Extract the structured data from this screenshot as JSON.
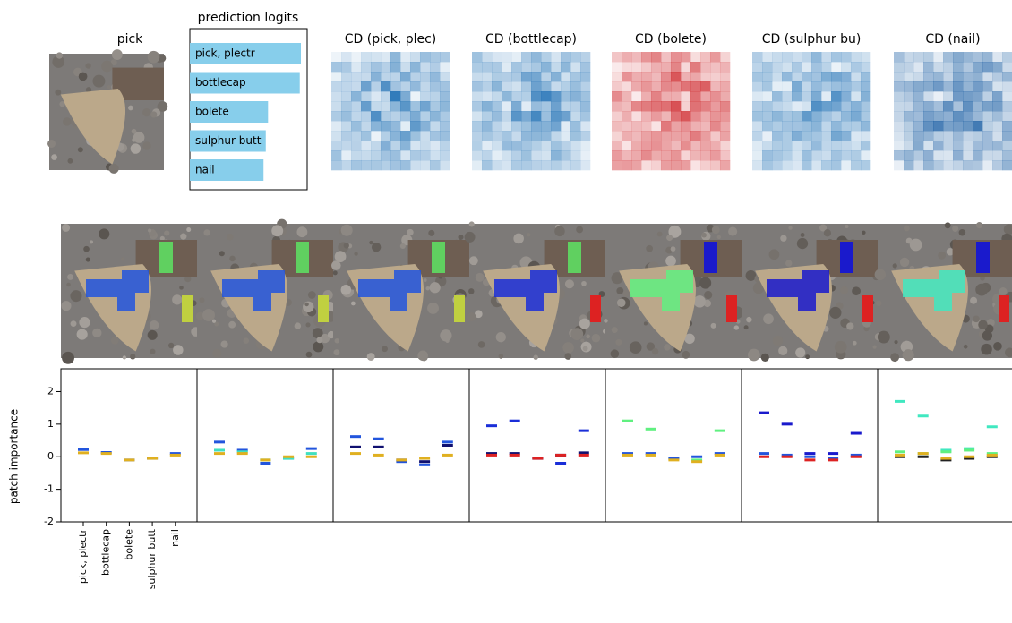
{
  "image_title": "pick",
  "cd_maps": [
    {
      "title": "CD (pick, plec)",
      "color": "#2171b5"
    },
    {
      "title": "CD (bottlecap)",
      "color": "#2171b5"
    },
    {
      "title": "CD (bolete)",
      "color": "#cb181d"
    },
    {
      "title": "CD (sulphur bu)",
      "color": "#2171b5"
    },
    {
      "title": "CD (nail)",
      "color": "#08519c"
    }
  ],
  "chart_data": [
    {
      "type": "bar",
      "title": "prediction logits",
      "categories": [
        "pick, plectr",
        "bottlecap",
        "bolete",
        "sulphur butt",
        "nail"
      ],
      "values": [
        9.8,
        9.7,
        6.9,
        6.7,
        6.5
      ],
      "color": "#87ceeb"
    },
    {
      "type": "scatter",
      "ylabel": "patch importance",
      "categories": [
        "pick, plectr",
        "bottlecap",
        "bolete",
        "sulphur butt",
        "nail"
      ],
      "ylim": [
        -2,
        2.7
      ],
      "yticks": [
        -2,
        -1,
        0,
        1,
        2
      ],
      "panels": [
        {
          "series": [
            {
              "color": "#2255dd",
              "values": [
                0.22,
                0.13,
                -0.1,
                -0.05,
                0.1
              ]
            },
            {
              "color": "#e0b020",
              "values": [
                0.12,
                0.1,
                -0.1,
                -0.05,
                0.05
              ]
            }
          ]
        },
        {
          "series": [
            {
              "color": "#2255dd",
              "values": [
                0.45,
                0.2,
                -0.2,
                -0.05,
                0.25
              ]
            },
            {
              "color": "#40e0c0",
              "values": [
                0.2,
                0.15,
                -0.1,
                -0.05,
                0.1
              ]
            },
            {
              "color": "#e0b020",
              "values": [
                0.1,
                0.1,
                -0.1,
                0,
                0
              ]
            }
          ]
        },
        {
          "series": [
            {
              "color": "#2255dd",
              "values": [
                0.62,
                0.55,
                -0.15,
                -0.25,
                0.45
              ]
            },
            {
              "color": "#101070",
              "values": [
                0.3,
                0.3,
                -0.1,
                -0.15,
                0.35
              ]
            },
            {
              "color": "#e0b020",
              "values": [
                0.1,
                0.05,
                -0.1,
                -0.05,
                0.05
              ]
            }
          ]
        },
        {
          "series": [
            {
              "color": "#1a2ed8",
              "values": [
                0.95,
                1.1,
                -0.05,
                -0.2,
                0.8
              ]
            },
            {
              "color": "#101070",
              "values": [
                0.1,
                0.1,
                -0.05,
                0.05,
                0.12
              ]
            },
            {
              "color": "#dd2222",
              "values": [
                0.05,
                0.05,
                -0.05,
                0.05,
                0.05
              ]
            }
          ]
        },
        {
          "series": [
            {
              "color": "#60f080",
              "values": [
                1.1,
                0.85,
                -0.05,
                -0.1,
                0.8
              ]
            },
            {
              "color": "#2255dd",
              "values": [
                0.1,
                0.1,
                -0.05,
                0,
                0.1
              ]
            },
            {
              "color": "#e0b020",
              "values": [
                0.05,
                0.05,
                -0.1,
                -0.15,
                0.05
              ]
            }
          ]
        },
        {
          "series": [
            {
              "color": "#1a1acc",
              "values": [
                1.35,
                1.0,
                0.1,
                0.1,
                0.72
              ]
            },
            {
              "color": "#2255dd",
              "values": [
                0.1,
                0.05,
                0,
                -0.05,
                0.05
              ]
            },
            {
              "color": "#dd2222",
              "values": [
                0,
                0,
                -0.1,
                -0.1,
                0
              ]
            }
          ]
        },
        {
          "series": [
            {
              "color": "#40e8c0",
              "values": [
                1.7,
                1.25,
                0.2,
                0.25,
                0.92
              ]
            },
            {
              "color": "#60f080",
              "values": [
                0.15,
                0.1,
                0.15,
                0.2,
                0.1
              ]
            },
            {
              "color": "#222222",
              "values": [
                0,
                0,
                -0.1,
                -0.05,
                0
              ]
            },
            {
              "color": "#e0b020",
              "values": [
                0.05,
                0.1,
                -0.05,
                0,
                0.05
              ]
            }
          ]
        }
      ]
    }
  ]
}
